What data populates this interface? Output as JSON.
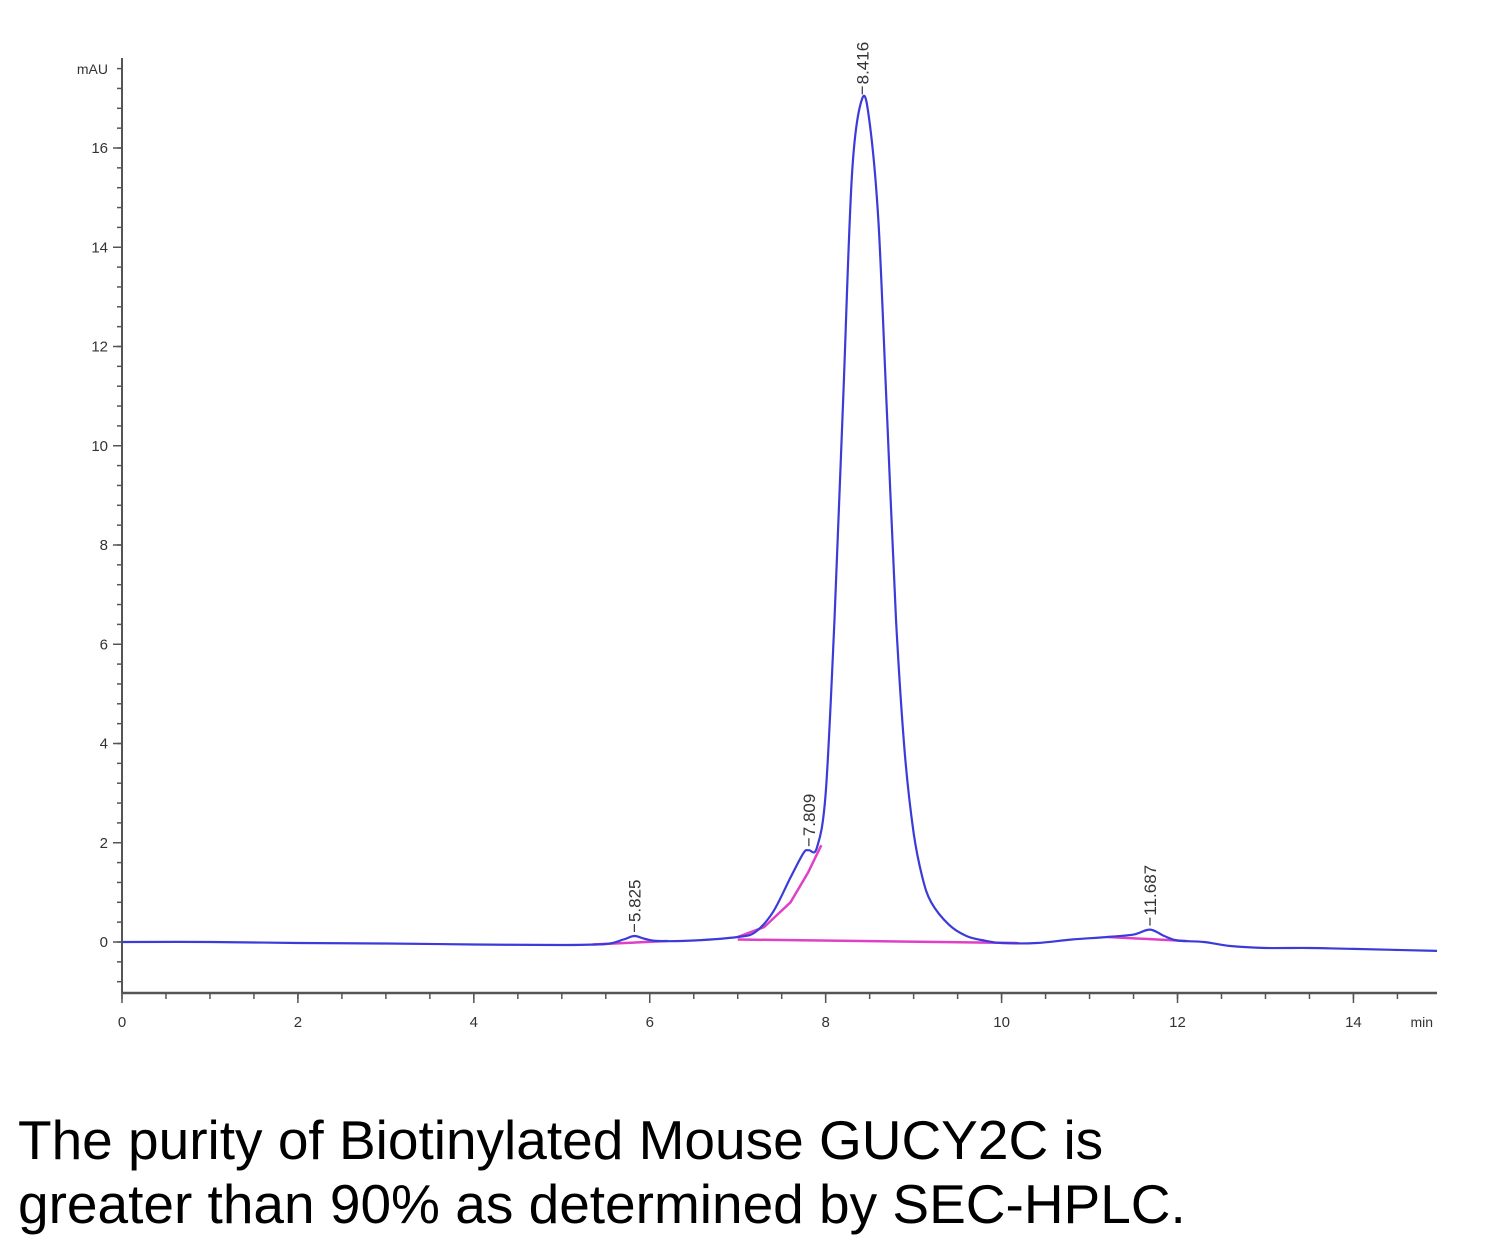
{
  "caption": {
    "line1": "The purity of Biotinylated Mouse GUCY2C is",
    "line2": "greater than 90% as determined by SEC-HPLC."
  },
  "chart_data": {
    "type": "line",
    "title": "",
    "ylabel": "mAU",
    "xlabel": "min",
    "xlim": [
      0,
      14.95
    ],
    "ylim": [
      -1,
      17.5
    ],
    "x_ticks": [
      0,
      2,
      4,
      6,
      8,
      10,
      12,
      14
    ],
    "y_ticks": [
      0,
      2,
      4,
      6,
      8,
      10,
      12,
      14,
      16
    ],
    "grid": false,
    "colors": {
      "trace": "#3b3bd9",
      "baseline": "#e040c8",
      "axis": "#555555"
    },
    "peaks": [
      {
        "label": "5.825",
        "x": 5.825,
        "y": 0.12
      },
      {
        "label": "7.809",
        "x": 7.809,
        "y": 1.85
      },
      {
        "label": "8.416",
        "x": 8.416,
        "y": 17.0
      },
      {
        "label": "11.687",
        "x": 11.687,
        "y": 0.25
      }
    ],
    "series": [
      {
        "x": [
          0,
          1,
          2,
          3,
          4,
          5,
          5.5,
          5.7,
          5.825,
          5.95,
          6.1,
          6.5,
          7.0,
          7.2,
          7.4,
          7.6,
          7.75,
          7.809,
          7.9,
          8.0,
          8.1,
          8.2,
          8.3,
          8.416,
          8.5,
          8.6,
          8.7,
          8.8,
          8.9,
          9.0,
          9.1,
          9.2,
          9.4,
          9.6,
          9.8,
          10.0,
          10.4,
          10.8,
          11.2,
          11.5,
          11.687,
          11.85,
          12.0,
          12.3,
          12.6,
          13.0,
          13.5,
          14.0,
          14.95
        ],
        "y": [
          0.0,
          0.0,
          -0.02,
          -0.03,
          -0.05,
          -0.06,
          -0.04,
          0.05,
          0.12,
          0.06,
          0.02,
          0.03,
          0.1,
          0.2,
          0.6,
          1.3,
          1.8,
          1.85,
          1.9,
          3.0,
          6.5,
          11.0,
          15.5,
          17.0,
          16.5,
          14.5,
          10.5,
          6.5,
          3.8,
          2.2,
          1.3,
          0.8,
          0.35,
          0.12,
          0.03,
          -0.02,
          -0.02,
          0.05,
          0.1,
          0.15,
          0.25,
          0.12,
          0.03,
          0.0,
          -0.08,
          -0.12,
          -0.12,
          -0.14,
          -0.18
        ]
      }
    ],
    "baselines": [
      {
        "x": [
          5.35,
          6.2
        ],
        "y": [
          -0.05,
          0.02
        ]
      },
      {
        "x": [
          7.0,
          7.3,
          7.6,
          7.8,
          7.95
        ],
        "y": [
          0.1,
          0.3,
          0.8,
          1.4,
          1.95
        ]
      },
      {
        "x": [
          7.0,
          10.2
        ],
        "y": [
          0.05,
          -0.02
        ]
      },
      {
        "x": [
          11.2,
          12.1
        ],
        "y": [
          0.1,
          0.02
        ]
      }
    ]
  }
}
